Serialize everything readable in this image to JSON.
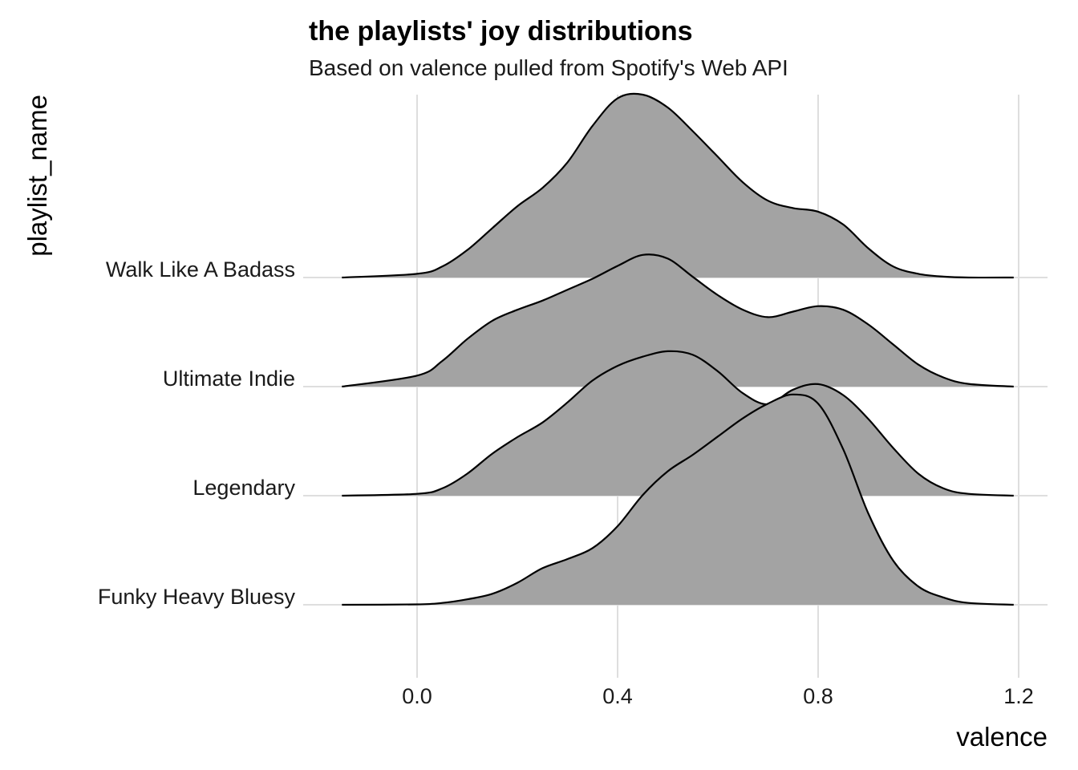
{
  "chart_data": {
    "type": "ridgeline",
    "title": "the playlists' joy distributions",
    "subtitle": "Based on valence pulled from Spotify's Web API",
    "xlabel": "valence",
    "ylabel": "playlist_name",
    "xlim": [
      -0.15,
      1.19
    ],
    "x_ticks": [
      0.0,
      0.4,
      0.8,
      1.2
    ],
    "x_tick_labels": [
      "0.0",
      "0.4",
      "0.8",
      "1.2"
    ],
    "grid": true,
    "fill_color": "#a3a3a3",
    "line_color": "#000000",
    "series": [
      {
        "name": "Walk Like A Badass",
        "x": [
          -0.15,
          0.0,
          0.05,
          0.1,
          0.15,
          0.2,
          0.25,
          0.3,
          0.35,
          0.4,
          0.45,
          0.5,
          0.55,
          0.6,
          0.65,
          0.7,
          0.75,
          0.8,
          0.85,
          0.9,
          0.95,
          1.0,
          1.05,
          1.1,
          1.19
        ],
        "density": [
          0.0,
          0.02,
          0.06,
          0.15,
          0.27,
          0.39,
          0.49,
          0.63,
          0.83,
          0.98,
          1.0,
          0.93,
          0.8,
          0.66,
          0.52,
          0.42,
          0.38,
          0.36,
          0.29,
          0.16,
          0.06,
          0.02,
          0.005,
          0.0,
          0.0
        ]
      },
      {
        "name": "Ultimate Indie",
        "x": [
          -0.15,
          0.0,
          0.05,
          0.1,
          0.15,
          0.2,
          0.25,
          0.3,
          0.35,
          0.4,
          0.45,
          0.5,
          0.55,
          0.6,
          0.65,
          0.7,
          0.75,
          0.8,
          0.85,
          0.9,
          0.95,
          1.0,
          1.05,
          1.1,
          1.19
        ],
        "density": [
          0.0,
          0.06,
          0.14,
          0.26,
          0.36,
          0.42,
          0.47,
          0.53,
          0.59,
          0.66,
          0.72,
          0.7,
          0.6,
          0.5,
          0.42,
          0.38,
          0.41,
          0.44,
          0.42,
          0.34,
          0.23,
          0.12,
          0.05,
          0.015,
          0.0
        ]
      },
      {
        "name": "Legendary",
        "x": [
          -0.15,
          0.0,
          0.05,
          0.1,
          0.15,
          0.2,
          0.25,
          0.3,
          0.35,
          0.4,
          0.45,
          0.5,
          0.55,
          0.6,
          0.65,
          0.7,
          0.75,
          0.8,
          0.85,
          0.9,
          0.95,
          1.0,
          1.05,
          1.1,
          1.19
        ],
        "density": [
          0.0,
          0.01,
          0.04,
          0.12,
          0.23,
          0.32,
          0.4,
          0.51,
          0.63,
          0.71,
          0.76,
          0.79,
          0.77,
          0.68,
          0.56,
          0.5,
          0.58,
          0.61,
          0.55,
          0.42,
          0.26,
          0.12,
          0.04,
          0.01,
          0.0
        ]
      },
      {
        "name": "Funky Heavy Bluesy",
        "x": [
          -0.15,
          0.0,
          0.05,
          0.1,
          0.15,
          0.2,
          0.25,
          0.3,
          0.35,
          0.4,
          0.45,
          0.5,
          0.55,
          0.6,
          0.65,
          0.7,
          0.75,
          0.8,
          0.85,
          0.9,
          0.95,
          1.0,
          1.05,
          1.1,
          1.19
        ],
        "density": [
          0.0,
          0.002,
          0.01,
          0.03,
          0.06,
          0.12,
          0.2,
          0.25,
          0.31,
          0.43,
          0.6,
          0.73,
          0.82,
          0.92,
          1.02,
          1.1,
          1.15,
          1.1,
          0.85,
          0.5,
          0.24,
          0.1,
          0.04,
          0.01,
          0.0
        ]
      }
    ]
  }
}
